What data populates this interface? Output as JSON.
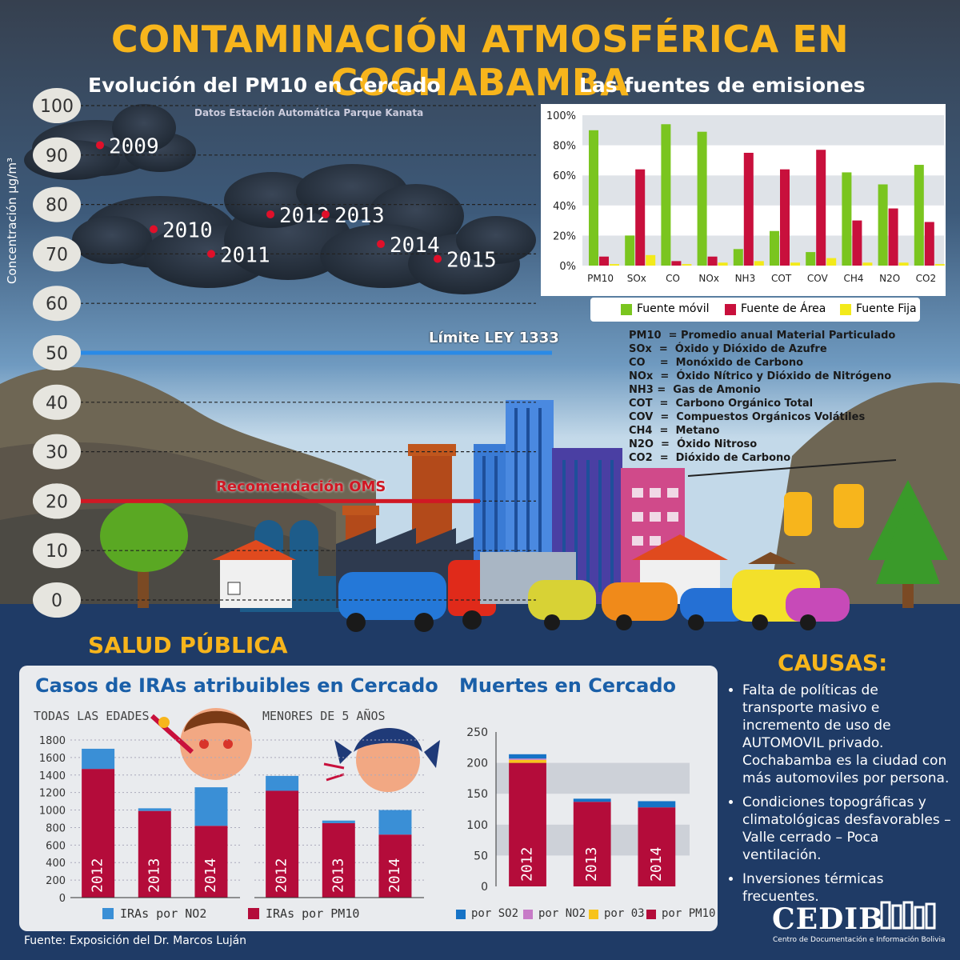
{
  "title": "CONTAMINACIÓN ATMOSFÉRICA EN COCHABAMBA",
  "colors": {
    "accent": "#f7b51c",
    "movil": "#7ac51f",
    "area": "#c8103c",
    "fija": "#f3ea1a",
    "no2": "#3a8fd6",
    "so2": "#1673c6",
    "no2_muertes": "#c77bc7",
    "o3": "#f7c31c",
    "pm10": "#b40c3a",
    "limite": "#2a8ae6",
    "oms": "#d01824"
  },
  "pm10_section": {
    "title": "Evolución del PM10 en Cercado",
    "subtitle": "Datos Estación Automática Parque Kanata",
    "ylabel": "Concentración µg/m³",
    "limite_label": "Límite LEY 1333",
    "oms_label": "Recomendación OMS"
  },
  "emisiones_section": {
    "title": "Las fuentes de emisiones",
    "legend": [
      "Fuente móvil",
      "Fuente de Área",
      "Fuente Fija"
    ],
    "abbreviations": [
      "PM10  = Promedio anual Material Particulado",
      "SOx  =  Óxido y Dióxido de Azufre",
      "CO    =  Monóxido de Carbono",
      "NOx  =  Óxido Nítrico y Dióxido de Nitrógeno",
      "NH3 =  Gas de Amonio",
      "COT  =  Carbono Orgánico Total",
      "COV  =  Compuestos Orgánicos Volátiles",
      "CH4  =  Metano",
      "N2O  =  Óxido Nitroso",
      "CO2  =  Dióxido de Carbono"
    ]
  },
  "salud_title": "SALUD PÚBLICA",
  "iras_section": {
    "title": "Casos de IRAs atribuibles en Cercado",
    "left_label": "TODAS LAS EDADES",
    "right_label": "MENORES DE 5 AÑOS",
    "legend": [
      "IRAs por NO2",
      "IRAs por PM10"
    ]
  },
  "muertes_section": {
    "title": "Muertes en Cercado",
    "legend": [
      "por SO2",
      "por NO2",
      "por 03",
      "por PM10"
    ]
  },
  "causas": {
    "title": "CAUSAS:",
    "items": [
      "Falta de políticas de transporte masivo e incremento de uso de AUTOMOVIL privado. Cochabamba es la ciudad con más automoviles por persona.",
      "Condiciones topográficas y climatológicas desfavorables – Valle cerrado – Poca ventilación.",
      "Inversiones térmicas frecuentes."
    ]
  },
  "fuente": "Fuente:  Exposición del Dr. Marcos Luján",
  "cedib": {
    "logo": "CEDIB",
    "caption": "Centro de Documentación e Información Bolivia"
  },
  "chart_data": [
    {
      "type": "scatter",
      "title": "Evolución del PM10 en Cercado",
      "subtitle": "Datos Estación Automática Parque Kanata",
      "ylabel": "Concentración µg/m³",
      "ylim": [
        0,
        100
      ],
      "yticks": [
        0,
        10,
        20,
        30,
        40,
        50,
        60,
        70,
        80,
        90,
        100
      ],
      "points": [
        {
          "label": "2009",
          "y": 92
        },
        {
          "label": "2010",
          "y": 75
        },
        {
          "label": "2011",
          "y": 70
        },
        {
          "label": "2012",
          "y": 78
        },
        {
          "label": "2013",
          "y": 78
        },
        {
          "label": "2014",
          "y": 72
        },
        {
          "label": "2015",
          "y": 69
        }
      ],
      "reference_lines": [
        {
          "label": "Límite LEY 1333",
          "y": 50
        },
        {
          "label": "Recomendación OMS",
          "y": 20
        }
      ]
    },
    {
      "type": "bar",
      "title": "Las fuentes de emisiones",
      "categories": [
        "PM10",
        "SOx",
        "CO",
        "NOx",
        "NH3",
        "COT",
        "COV",
        "CH4",
        "N2O",
        "CO2"
      ],
      "yticks": [
        "0%",
        "20%",
        "40%",
        "60%",
        "80%",
        "100%"
      ],
      "ylim": [
        0,
        100
      ],
      "series": [
        {
          "name": "Fuente móvil",
          "values": [
            90,
            20,
            94,
            89,
            11,
            23,
            9,
            62,
            54,
            67
          ]
        },
        {
          "name": "Fuente de Área",
          "values": [
            6,
            64,
            3,
            6,
            75,
            64,
            77,
            30,
            38,
            29
          ]
        },
        {
          "name": "Fuente Fija",
          "values": [
            1,
            7,
            1,
            2,
            3,
            2,
            5,
            2,
            2,
            1
          ]
        }
      ]
    },
    {
      "type": "bar",
      "title": "TODAS LAS EDADES",
      "categories": [
        "2012",
        "2013",
        "2014"
      ],
      "ylim": [
        0,
        1800
      ],
      "yticks": [
        0,
        200,
        400,
        600,
        800,
        1000,
        1200,
        1400,
        1600,
        1800
      ],
      "series": [
        {
          "name": "IRAs por PM10",
          "values": [
            1470,
            990,
            820
          ]
        },
        {
          "name": "IRAs por NO2",
          "values": [
            230,
            30,
            440
          ]
        }
      ]
    },
    {
      "type": "bar",
      "title": "MENORES DE 5 AÑOS",
      "categories": [
        "2012",
        "2013",
        "2014"
      ],
      "ylim": [
        0,
        1800
      ],
      "series": [
        {
          "name": "IRAs por PM10",
          "values": [
            1220,
            850,
            720
          ]
        },
        {
          "name": "IRAs por NO2",
          "values": [
            170,
            30,
            280
          ]
        }
      ]
    },
    {
      "type": "bar",
      "title": "Muertes en Cercado",
      "categories": [
        "2012",
        "2013",
        "2014"
      ],
      "ylim": [
        0,
        250
      ],
      "yticks": [
        0,
        50,
        100,
        150,
        200,
        250
      ],
      "series": [
        {
          "name": "por PM10",
          "values": [
            200,
            137,
            128
          ]
        },
        {
          "name": "por 03",
          "values": [
            5,
            0,
            0
          ]
        },
        {
          "name": "por NO2",
          "values": [
            2,
            0,
            0
          ]
        },
        {
          "name": "por SO2",
          "values": [
            7,
            5,
            10
          ]
        }
      ]
    }
  ]
}
